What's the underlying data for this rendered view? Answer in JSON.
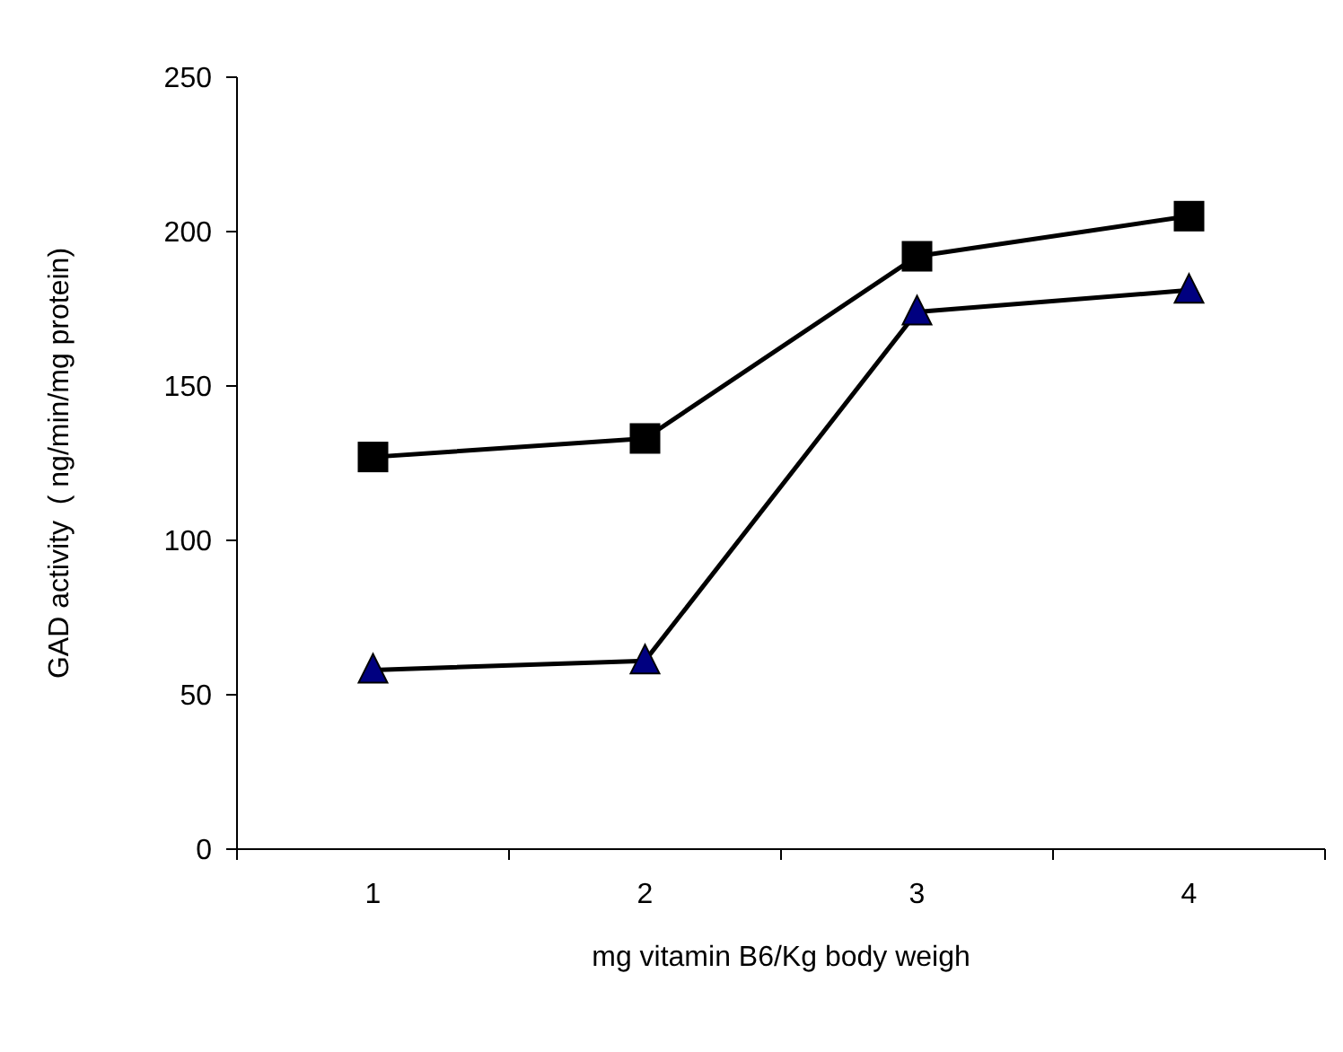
{
  "chart_data": {
    "type": "line",
    "xlabel": "mg vitamin B6/Kg body weigh",
    "ylabel": "GAD activity  ( ng/min/mg protein)",
    "categories": [
      "1",
      "2",
      "3",
      "4"
    ],
    "ylim": [
      0,
      250
    ],
    "yticks": [
      0,
      50,
      100,
      150,
      200,
      250
    ],
    "grid": false,
    "series": [
      {
        "color": "#000000",
        "marker": "square",
        "values": [
          127,
          133,
          192,
          205
        ]
      },
      {
        "color": "#000080",
        "marker": "triangle",
        "values": [
          58,
          61,
          174,
          181
        ]
      }
    ]
  }
}
